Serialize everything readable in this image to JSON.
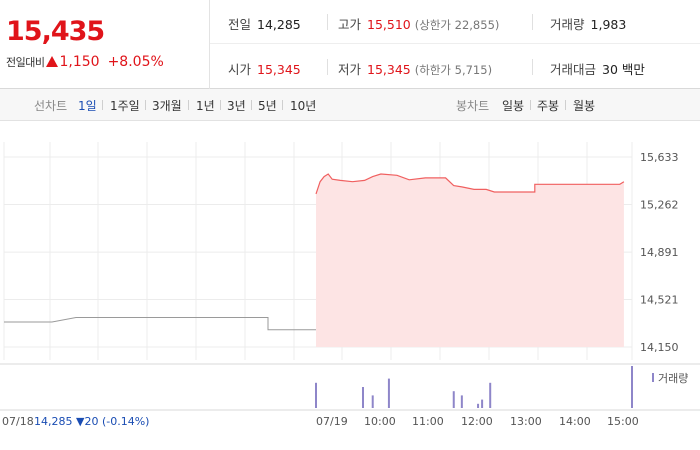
{
  "summary": {
    "current_price": "15,435",
    "change_label": "전일대비",
    "change_amount": "1,150",
    "change_percent": "+8.05%",
    "stats": {
      "prev_close": {
        "label": "전일",
        "value": "14,285"
      },
      "high": {
        "label": "고가",
        "value": "15,510",
        "sub": "(상한가 22,855)"
      },
      "volume": {
        "label": "거래량",
        "value": "1,983"
      },
      "open": {
        "label": "시가",
        "value": "15,345"
      },
      "low": {
        "label": "저가",
        "value": "15,345",
        "sub": "(하한가 5,715)"
      },
      "amount": {
        "label": "거래대금",
        "value": "30 백만"
      }
    }
  },
  "tabs": {
    "line_chart_label": "선차트",
    "periods": [
      "1일",
      "1주일",
      "3개월",
      "1년",
      "3년",
      "5년",
      "10년"
    ],
    "active_period": "1일",
    "candle_chart_label": "봉차트",
    "candles": [
      "일봉",
      "주봉",
      "월봉"
    ]
  },
  "colors": {
    "up": "#e0141a",
    "line": "#f06060",
    "area": "#fde4e4",
    "prev_line": "#9a9a9a",
    "volume": "#8e86c9",
    "active_tab": "#1a4db3"
  },
  "chart_data": {
    "type": "area",
    "y_ticks": [
      "15,633",
      "15,262",
      "14,891",
      "14,521",
      "14,150"
    ],
    "y_tick_values": [
      15633,
      15262,
      14891,
      14521,
      14150
    ],
    "ylim": [
      14150,
      15633
    ],
    "x_labels": [
      "07/18",
      "07/19",
      "10:00",
      "11:00",
      "12:00",
      "13:00",
      "14:00",
      "15:00"
    ],
    "prev_day_label": "07/18",
    "prev_day_summary": "14,285 ▼20 (-0.14%)",
    "volume_legend": "거래량",
    "prev_day_series": [
      {
        "x": "07/18 09:00",
        "y": 14345
      },
      {
        "x": "07/18 10:00",
        "y": 14345
      },
      {
        "x": "07/18 10:30",
        "y": 14380
      },
      {
        "x": "07/18 14:30",
        "y": 14380
      },
      {
        "x": "07/18 14:30",
        "y": 14285
      },
      {
        "x": "07/18 15:30",
        "y": 14285
      }
    ],
    "today_series": [
      {
        "x": "09:00",
        "y": 15345
      },
      {
        "x": "09:05",
        "y": 15440
      },
      {
        "x": "09:10",
        "y": 15480
      },
      {
        "x": "09:15",
        "y": 15500
      },
      {
        "x": "09:20",
        "y": 15460
      },
      {
        "x": "09:30",
        "y": 15450
      },
      {
        "x": "09:45",
        "y": 15440
      },
      {
        "x": "10:00",
        "y": 15450
      },
      {
        "x": "10:10",
        "y": 15480
      },
      {
        "x": "10:20",
        "y": 15500
      },
      {
        "x": "10:40",
        "y": 15490
      },
      {
        "x": "10:55",
        "y": 15455
      },
      {
        "x": "11:15",
        "y": 15470
      },
      {
        "x": "11:40",
        "y": 15470
      },
      {
        "x": "11:50",
        "y": 15410
      },
      {
        "x": "12:00",
        "y": 15400
      },
      {
        "x": "12:15",
        "y": 15380
      },
      {
        "x": "12:30",
        "y": 15380
      },
      {
        "x": "12:40",
        "y": 15360
      },
      {
        "x": "13:00",
        "y": 15360
      },
      {
        "x": "13:30",
        "y": 15360
      },
      {
        "x": "13:30",
        "y": 15420
      },
      {
        "x": "15:15",
        "y": 15420
      },
      {
        "x": "15:20",
        "y": 15440
      }
    ],
    "volume_bars": [
      {
        "x": "09:00",
        "v": 120
      },
      {
        "x": "09:58",
        "v": 100
      },
      {
        "x": "10:10",
        "v": 60
      },
      {
        "x": "10:30",
        "v": 140
      },
      {
        "x": "11:50",
        "v": 80
      },
      {
        "x": "12:00",
        "v": 60
      },
      {
        "x": "12:20",
        "v": 20
      },
      {
        "x": "12:25",
        "v": 40
      },
      {
        "x": "12:35",
        "v": 120
      },
      {
        "x": "15:30",
        "v": 200
      }
    ]
  }
}
